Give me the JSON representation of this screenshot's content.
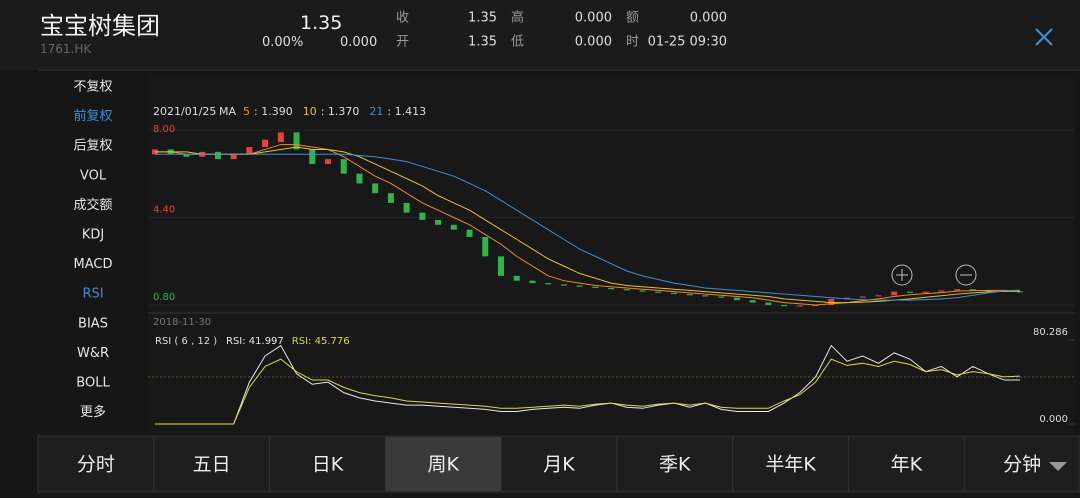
{
  "header": {
    "name": "宝宝树集团",
    "code": "1761.HK",
    "price": "1.35",
    "change_pct": "0.00%",
    "change": "0.000",
    "stats": [
      {
        "label": "收",
        "value": "1.35"
      },
      {
        "label": "高",
        "value": "0.000"
      },
      {
        "label": "额",
        "value": "0.000"
      },
      {
        "label": "开",
        "value": "1.35"
      },
      {
        "label": "低",
        "value": "0.000"
      },
      {
        "label": "时",
        "value": "01-25 09:30"
      }
    ]
  },
  "side_menu": {
    "items": [
      "不复权",
      "前复权",
      "后复权",
      "VOL",
      "成交额",
      "KDJ",
      "MACD",
      "RSI",
      "BIAS",
      "W&R",
      "BOLL",
      "更多"
    ],
    "active": [
      1,
      7
    ]
  },
  "tabs": {
    "items": [
      "分时",
      "五日",
      "日K",
      "周K",
      "月K",
      "季K",
      "半年K",
      "年K",
      "分钟"
    ],
    "selected": 3
  },
  "chart_data": {
    "type": "candlestick",
    "date": "2021/01/25",
    "start_date": "2018-11-30",
    "ma_label": "MA",
    "ma": [
      {
        "name": "5",
        "value_label": "1.390",
        "color": "#f08a24",
        "values": [
          7.1,
          7.1,
          7.0,
          7.0,
          7.0,
          7.0,
          7.0,
          7.2,
          7.4,
          7.4,
          7.3,
          7.2,
          6.9,
          6.5,
          6.1,
          5.8,
          5.4,
          5.0,
          4.7,
          4.4,
          4.1,
          3.7,
          3.3,
          2.8,
          2.4,
          2.0,
          1.8,
          1.7,
          1.6,
          1.55,
          1.5,
          1.45,
          1.4,
          1.35,
          1.3,
          1.25,
          1.2,
          1.15,
          1.1,
          1.0,
          0.9,
          0.85,
          0.8,
          0.85,
          0.9,
          0.98,
          1.05,
          1.15,
          1.22,
          1.27,
          1.31,
          1.37,
          1.39,
          1.4,
          1.4,
          1.39
        ]
      },
      {
        "name": "10",
        "value_label": "1.370",
        "color": "#e6c229",
        "values": [
          7.1,
          7.1,
          7.1,
          7.0,
          7.0,
          7.0,
          7.0,
          7.1,
          7.2,
          7.3,
          7.2,
          7.2,
          7.1,
          6.9,
          6.6,
          6.3,
          6.0,
          5.7,
          5.3,
          5.0,
          4.7,
          4.3,
          3.9,
          3.5,
          3.1,
          2.7,
          2.4,
          2.1,
          1.9,
          1.7,
          1.6,
          1.55,
          1.5,
          1.45,
          1.4,
          1.35,
          1.3,
          1.25,
          1.2,
          1.15,
          1.05,
          1.0,
          0.95,
          0.9,
          0.9,
          0.92,
          0.95,
          1.0,
          1.05,
          1.12,
          1.18,
          1.25,
          1.3,
          1.34,
          1.36,
          1.37
        ]
      },
      {
        "name": "21",
        "value_label": "1.413",
        "color": "#3d8fd6",
        "values": [
          7.0,
          7.0,
          7.0,
          7.0,
          7.0,
          7.0,
          7.0,
          7.0,
          7.0,
          7.0,
          7.0,
          7.0,
          7.0,
          6.95,
          6.9,
          6.8,
          6.7,
          6.5,
          6.3,
          6.1,
          5.8,
          5.5,
          5.1,
          4.7,
          4.3,
          3.9,
          3.5,
          3.1,
          2.8,
          2.5,
          2.2,
          2.0,
          1.85,
          1.7,
          1.6,
          1.5,
          1.45,
          1.4,
          1.35,
          1.3,
          1.25,
          1.2,
          1.15,
          1.1,
          1.05,
          1.02,
          1.0,
          1.0,
          1.0,
          1.02,
          1.05,
          1.1,
          1.2,
          1.3,
          1.38,
          1.413
        ]
      }
    ],
    "open": [
      7.0,
      7.2,
      7.0,
      6.9,
      7.1,
      6.8,
      7.0,
      7.3,
      7.5,
      7.9,
      7.2,
      6.6,
      6.8,
      6.2,
      5.8,
      5.4,
      5.0,
      4.6,
      4.3,
      4.1,
      3.9,
      3.6,
      2.8,
      2.0,
      1.8,
      1.7,
      1.65,
      1.6,
      1.55,
      1.5,
      1.45,
      1.4,
      1.35,
      1.3,
      1.25,
      1.2,
      1.15,
      1.1,
      1.0,
      0.9,
      0.8,
      0.75,
      0.78,
      0.8,
      1.05,
      1.1,
      1.15,
      1.2,
      1.35,
      1.3,
      1.35,
      1.4,
      1.45,
      1.4,
      1.38,
      1.36
    ],
    "close": [
      7.2,
      7.0,
      6.9,
      7.1,
      6.8,
      7.0,
      7.3,
      7.6,
      7.9,
      7.2,
      6.6,
      6.8,
      6.2,
      5.8,
      5.4,
      5.0,
      4.6,
      4.3,
      4.1,
      3.9,
      3.6,
      2.8,
      2.0,
      1.8,
      1.7,
      1.65,
      1.6,
      1.55,
      1.5,
      1.45,
      1.4,
      1.35,
      1.3,
      1.25,
      1.2,
      1.15,
      1.1,
      1.0,
      0.9,
      0.8,
      0.75,
      0.78,
      0.8,
      1.05,
      1.1,
      1.15,
      1.2,
      1.35,
      1.3,
      1.35,
      1.4,
      1.45,
      1.4,
      1.38,
      1.36,
      1.35
    ],
    "up_color": "#e8413b",
    "down_color": "#2db54b",
    "ylim": [
      0.8,
      8
    ],
    "yticks": [
      {
        "value": 8,
        "label": "8.00"
      },
      {
        "value": 4.4,
        "label": "4.40"
      },
      {
        "value": 0.8,
        "label": "0.80"
      }
    ],
    "rsi_title": "RSI ( 6 , 12 )",
    "rsi": [
      {
        "name": "RSI: 41.997",
        "color": "#e8e8e8",
        "values": [
          0,
          0,
          0,
          0,
          0,
          0,
          40,
          65,
          75,
          48,
          38,
          40,
          30,
          25,
          22,
          20,
          18,
          18,
          17,
          16,
          15,
          14,
          12,
          12,
          14,
          15,
          16,
          15,
          18,
          20,
          16,
          15,
          18,
          20,
          16,
          20,
          14,
          12,
          12,
          12,
          20,
          30,
          45,
          75,
          60,
          65,
          58,
          68,
          62,
          50,
          55,
          45,
          55,
          48,
          42,
          41.997
        ]
      },
      {
        "name": "RSI: 45.776",
        "color": "#d8d84a",
        "values": [
          0,
          0,
          0,
          0,
          0,
          0,
          35,
          55,
          62,
          50,
          42,
          42,
          35,
          30,
          27,
          25,
          22,
          21,
          20,
          19,
          18,
          17,
          15,
          15,
          16,
          17,
          18,
          17,
          19,
          20,
          18,
          17,
          19,
          20,
          18,
          20,
          16,
          15,
          15,
          15,
          22,
          28,
          40,
          62,
          56,
          58,
          55,
          60,
          57,
          50,
          52,
          47,
          50,
          48,
          45,
          45.776
        ]
      }
    ],
    "rlim": [
      0,
      80.286
    ],
    "rticks": [
      {
        "value": 0,
        "label": "0.000"
      },
      80.286
    ]
  }
}
